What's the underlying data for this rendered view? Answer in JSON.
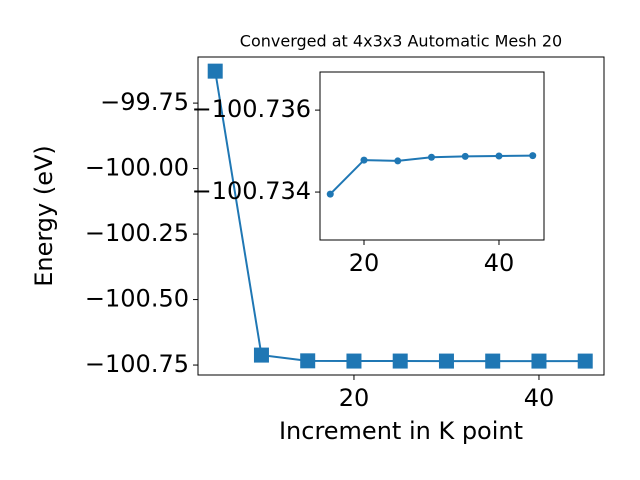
{
  "chart_data": [
    {
      "type": "line",
      "title": "Converged at 4x3x3 Automatic Mesh 20",
      "x_label": "Increment in K point",
      "y_label": "Energy (eV)",
      "x": [
        5,
        10,
        15,
        20,
        25,
        30,
        35,
        40,
        45
      ],
      "series": [
        {
          "color": "#1f77b4",
          "marker": "square",
          "values": [
            -99.628,
            -100.712,
            -100.73395,
            -100.73478,
            -100.73476,
            -100.73485,
            -100.73487,
            -100.73488,
            -100.73489
          ]
        }
      ],
      "xlim": [
        3.14,
        47.03
      ],
      "xticks": [
        20,
        40
      ],
      "ylim": [
        -100.788,
        -99.574
      ],
      "yticks": [
        {
          "value": -99.75,
          "label": "−99.75"
        },
        {
          "value": -100.0,
          "label": "−100.00"
        },
        {
          "value": -100.25,
          "label": "−100.25"
        },
        {
          "value": -100.5,
          "label": "−100.50"
        },
        {
          "value": -100.75,
          "label": "−100.75"
        }
      ]
    },
    {
      "type": "line",
      "x": [
        15,
        20,
        25,
        30,
        35,
        40,
        45
      ],
      "series": [
        {
          "color": "#1f77b4",
          "marker": "circle",
          "values": [
            -100.73395,
            -100.73478,
            -100.73476,
            -100.73485,
            -100.73487,
            -100.73488,
            -100.73489
          ]
        }
      ],
      "xlim": [
        13.48,
        46.67
      ],
      "xticks": [
        20,
        40
      ],
      "ylim": [
        -100.73283,
        -100.73693
      ],
      "yticks": [
        {
          "value": -100.736,
          "label": "−100.736"
        },
        {
          "value": -100.734,
          "label": "−100.734"
        }
      ]
    }
  ]
}
